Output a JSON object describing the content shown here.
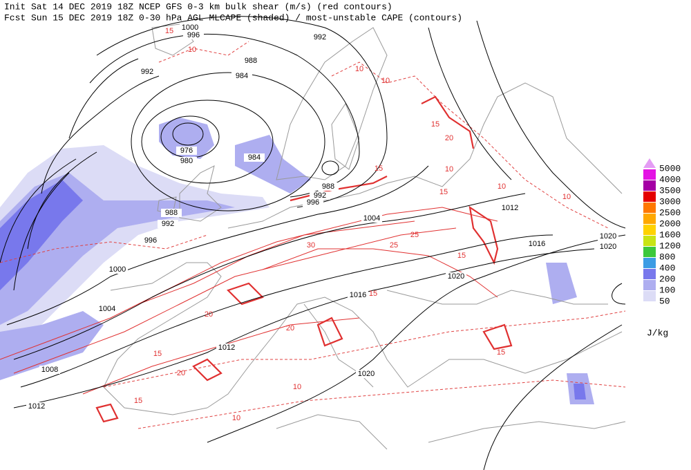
{
  "header": {
    "line1": "Init  Sat 14 DEC 2019 18Z  NCEP GFS 0-3 km bulk shear (m/s) (red contours)",
    "line2": "Fcst Sun 15 DEC 2019 18Z  0-30 hPa AGL MLCAPE (shaded) / most-unstable CAPE (contours)"
  },
  "legend": {
    "levels": [
      {
        "label": 5000,
        "color": "#e49cf4"
      },
      {
        "label": 4000,
        "color": "#e414e4"
      },
      {
        "label": 3500,
        "color": "#a400a4"
      },
      {
        "label": 3000,
        "color": "#e40000"
      },
      {
        "label": 2500,
        "color": "#ff7800"
      },
      {
        "label": 2000,
        "color": "#ffa800"
      },
      {
        "label": 1600,
        "color": "#ffd200"
      },
      {
        "label": 1200,
        "color": "#c8e414"
      },
      {
        "label": 800,
        "color": "#3cc83c"
      },
      {
        "label": 400,
        "color": "#3c9ce4"
      },
      {
        "label": 200,
        "color": "#7878ec"
      },
      {
        "label": 100,
        "color": "#aeaef0"
      },
      {
        "label": 50,
        "color": "#dcdcf6"
      }
    ],
    "unit": "J/kg"
  },
  "map": {
    "pressure_labels": [
      1000,
      996,
      992,
      988,
      992,
      984,
      976,
      980,
      984,
      988,
      992,
      996,
      988,
      992,
      996,
      1000,
      1004,
      1008,
      1012,
      1012,
      1020,
      1016,
      1020,
      1016,
      1012,
      1004,
      1020,
      1020
    ],
    "shear_labels": [
      15,
      10,
      10,
      15,
      10,
      15,
      20,
      25,
      30,
      25,
      20,
      15,
      20,
      15,
      10,
      15,
      10,
      15,
      20,
      15,
      10,
      15,
      10,
      10
    ]
  }
}
